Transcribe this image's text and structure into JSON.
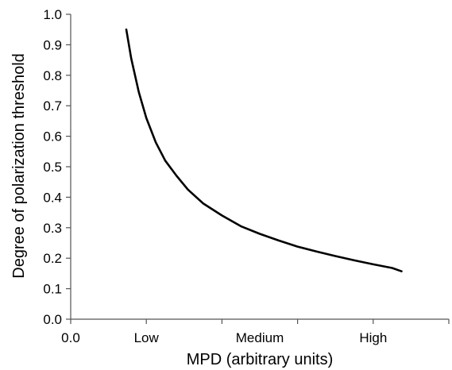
{
  "chart_data": {
    "type": "line",
    "title": "",
    "xlabel": "MPD (arbitrary units)",
    "ylabel": "Degree of polarization threshold",
    "xlim": [
      0,
      1
    ],
    "ylim": [
      0,
      1
    ],
    "y_ticks": [
      "0.0",
      "0.1",
      "0.2",
      "0.3",
      "0.4",
      "0.5",
      "0.6",
      "0.7",
      "0.8",
      "0.9",
      "1.0"
    ],
    "x_tick_positions": [
      0,
      0.2,
      0.4,
      0.6,
      0.8,
      1.0
    ],
    "x_tick_labels": [
      {
        "label": "0.0",
        "x": 0.0
      },
      {
        "label": "Low",
        "x": 0.2
      },
      {
        "label": "Medium",
        "x": 0.5
      },
      {
        "label": "High",
        "x": 0.8
      }
    ],
    "grid": false,
    "legend": "none",
    "line_color": "#000000",
    "series": [
      {
        "x": [
          0.147,
          0.16,
          0.18,
          0.2,
          0.225,
          0.25,
          0.28,
          0.31,
          0.35,
          0.4,
          0.45,
          0.5,
          0.55,
          0.6,
          0.65,
          0.7,
          0.75,
          0.8,
          0.85,
          0.875
        ],
        "y": [
          0.95,
          0.855,
          0.745,
          0.66,
          0.58,
          0.52,
          0.47,
          0.425,
          0.38,
          0.34,
          0.305,
          0.28,
          0.258,
          0.238,
          0.222,
          0.207,
          0.193,
          0.18,
          0.168,
          0.157
        ]
      }
    ]
  }
}
